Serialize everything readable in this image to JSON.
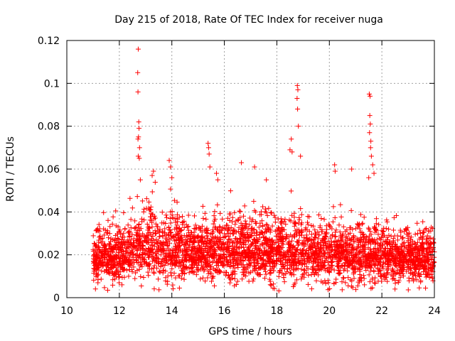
{
  "chart_data": {
    "type": "scatter",
    "title": "Day 215 of 2018, Rate Of TEC Index for receiver nuga",
    "xlabel": "GPS time / hours",
    "ylabel": "ROTI / TECUs",
    "xlim": [
      10,
      24
    ],
    "ylim": [
      0,
      0.12
    ],
    "xticks": [
      10,
      12,
      14,
      16,
      18,
      20,
      22,
      24
    ],
    "xtick_labels": [
      "10",
      "12",
      "14",
      "16",
      "18",
      "20",
      "22",
      "24"
    ],
    "yticks": [
      0,
      0.02,
      0.04,
      0.06,
      0.08,
      0.1,
      0.12
    ],
    "ytick_labels": [
      "0",
      "0.02",
      "0.04",
      "0.06",
      "0.08",
      "0.1",
      "0.12"
    ],
    "grid": true,
    "marker": "+",
    "series": [
      {
        "name": "ROTI",
        "color": "#ff0000",
        "x_range": [
          11.0,
          24.0
        ],
        "envelope": {
          "x": [
            11.0,
            11.5,
            12.0,
            12.5,
            13.0,
            13.5,
            14.0,
            14.5,
            15.0,
            15.5,
            16.0,
            16.5,
            17.0,
            17.5,
            18.0,
            18.5,
            19.0,
            19.5,
            20.0,
            20.5,
            21.0,
            21.5,
            22.0,
            22.5,
            23.0,
            23.5,
            24.0
          ],
          "p05": [
            0.009,
            0.01,
            0.01,
            0.011,
            0.011,
            0.011,
            0.012,
            0.012,
            0.011,
            0.011,
            0.011,
            0.011,
            0.011,
            0.011,
            0.011,
            0.011,
            0.011,
            0.011,
            0.01,
            0.01,
            0.01,
            0.01,
            0.01,
            0.01,
            0.01,
            0.01,
            0.01
          ],
          "median": [
            0.018,
            0.019,
            0.02,
            0.022,
            0.024,
            0.023,
            0.023,
            0.021,
            0.02,
            0.02,
            0.021,
            0.022,
            0.022,
            0.022,
            0.022,
            0.022,
            0.021,
            0.021,
            0.02,
            0.02,
            0.02,
            0.02,
            0.019,
            0.019,
            0.018,
            0.018,
            0.018
          ],
          "p95": [
            0.028,
            0.031,
            0.032,
            0.036,
            0.04,
            0.039,
            0.037,
            0.034,
            0.032,
            0.033,
            0.035,
            0.036,
            0.036,
            0.035,
            0.035,
            0.036,
            0.034,
            0.033,
            0.033,
            0.033,
            0.033,
            0.032,
            0.031,
            0.03,
            0.029,
            0.029,
            0.029
          ]
        },
        "outliers": [
          [
            12.72,
            0.116
          ],
          [
            12.7,
            0.105
          ],
          [
            12.71,
            0.096
          ],
          [
            12.74,
            0.082
          ],
          [
            12.75,
            0.079
          ],
          [
            12.73,
            0.075
          ],
          [
            12.71,
            0.074
          ],
          [
            12.77,
            0.07
          ],
          [
            12.72,
            0.066
          ],
          [
            12.76,
            0.065
          ],
          [
            12.8,
            0.055
          ],
          [
            13.3,
            0.059
          ],
          [
            13.25,
            0.057
          ],
          [
            13.9,
            0.064
          ],
          [
            13.95,
            0.061
          ],
          [
            14.0,
            0.056
          ],
          [
            15.38,
            0.072
          ],
          [
            15.4,
            0.07
          ],
          [
            15.42,
            0.067
          ],
          [
            15.45,
            0.061
          ],
          [
            15.7,
            0.058
          ],
          [
            15.75,
            0.055
          ],
          [
            16.65,
            0.063
          ],
          [
            17.15,
            0.061
          ],
          [
            17.6,
            0.055
          ],
          [
            18.55,
            0.074
          ],
          [
            18.5,
            0.069
          ],
          [
            18.58,
            0.068
          ],
          [
            18.78,
            0.099
          ],
          [
            18.8,
            0.097
          ],
          [
            18.77,
            0.093
          ],
          [
            18.79,
            0.088
          ],
          [
            18.82,
            0.08
          ],
          [
            18.9,
            0.066
          ],
          [
            20.2,
            0.062
          ],
          [
            20.22,
            0.059
          ],
          [
            20.85,
            0.06
          ],
          [
            21.52,
            0.095
          ],
          [
            21.55,
            0.094
          ],
          [
            21.54,
            0.085
          ],
          [
            21.56,
            0.081
          ],
          [
            21.53,
            0.077
          ],
          [
            21.58,
            0.073
          ],
          [
            21.57,
            0.07
          ],
          [
            21.6,
            0.066
          ],
          [
            21.65,
            0.062
          ],
          [
            21.7,
            0.058
          ],
          [
            21.5,
            0.056
          ],
          [
            22.5,
            0.004
          ],
          [
            12.1,
            0.006
          ]
        ]
      }
    ]
  }
}
